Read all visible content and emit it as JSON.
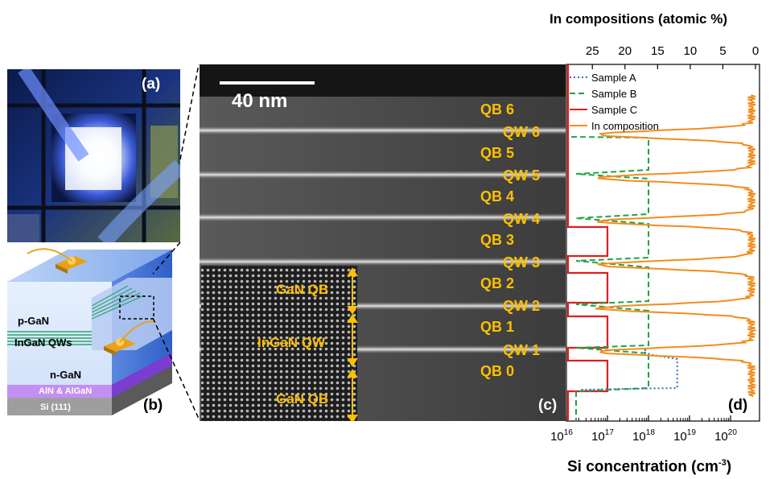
{
  "panels": {
    "a": "(a)",
    "b": "(b)",
    "c": "(c)",
    "d": "(d)"
  },
  "device_layers": {
    "p_gan": "p-GaN",
    "ingan_qws": "InGaN QWs",
    "n_gan": "n-GaN",
    "aln_algan": "AlN & AlGaN",
    "si": "Si (111)"
  },
  "tem": {
    "scale_bar": "40 nm",
    "barriers": [
      "QB 6",
      "QB 5",
      "QB 4",
      "QB 3",
      "QB 2",
      "QB 1",
      "QB 0"
    ],
    "wells": [
      "QW 6",
      "QW 5",
      "QW 4",
      "QW 3",
      "QW 2",
      "QW 1"
    ],
    "inset_labels": [
      "GaN QB",
      "InGaN QW",
      "GaN QB"
    ]
  },
  "colors": {
    "sample_a": "#2e75b6",
    "sample_b": "#1fa34a",
    "sample_c": "#e01e1e",
    "in_composition": "#f28c1c",
    "annotation": "#ffc000"
  },
  "chart_data": {
    "type": "line",
    "top_axis": {
      "label": "In compositions (atomic %)",
      "ticks": [
        "25",
        "20",
        "15",
        "10",
        "5",
        "0"
      ]
    },
    "bottom_axis": {
      "label_main": "Si concentration (cm",
      "label_exp": "-3",
      "label_close": ")",
      "ticks": [
        {
          "base": "10",
          "exp": "16"
        },
        {
          "base": "10",
          "exp": "17"
        },
        {
          "base": "10",
          "exp": "18"
        },
        {
          "base": "10",
          "exp": "19"
        },
        {
          "base": "10",
          "exp": "20"
        }
      ]
    },
    "legend": [
      "Sample A",
      "Sample B",
      "Sample C",
      "In composition"
    ]
  }
}
